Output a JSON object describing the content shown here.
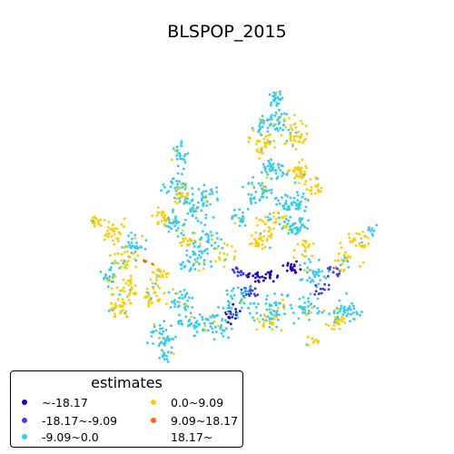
{
  "chart_data": {
    "type": "scatter",
    "title": "BLSPOP_2015",
    "legend": {
      "title": "estimates",
      "placement": "lower-left",
      "columns": 2
    },
    "classes": [
      {
        "label": "~-18.17",
        "color": "#2200cc",
        "range": [
          null,
          -18.17
        ]
      },
      {
        "label": "-18.17~-9.09",
        "color": "#3b3bf0",
        "range": [
          -18.17,
          -9.09
        ]
      },
      {
        "label": "-9.09~0.0",
        "color": "#33ccf0",
        "range": [
          -9.09,
          0.0
        ]
      },
      {
        "label": "0.0~9.09",
        "color": "#ffcc00",
        "range": [
          0.0,
          9.09
        ]
      },
      {
        "label": "9.09~18.17",
        "color": "#ff6600",
        "range": [
          9.09,
          18.17
        ]
      },
      {
        "label": "18.17~",
        "color": "#cc0000",
        "range": [
          18.17,
          null
        ]
      }
    ],
    "axes_visible": false
  }
}
